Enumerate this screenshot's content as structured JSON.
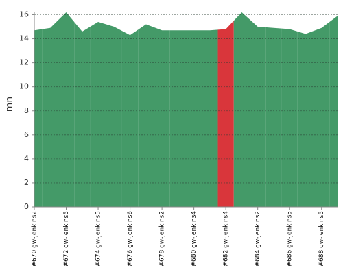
{
  "chart_data": {
    "type": "area",
    "y_label": "mn",
    "categories": [
      "#670 gw-jenkins2",
      null,
      "#672 gw-jenkins5",
      null,
      "#674 gw-jenkins5",
      null,
      "#676 gw-jenkins6",
      null,
      "#678 gw-jenkins2",
      null,
      "#680 gw-jenkins4",
      null,
      "#682 gw-jenkins4",
      null,
      "#684 gw-jenkins2",
      null,
      "#686 gw-jenkins5",
      null,
      "#688 gw-jenkins5",
      null
    ],
    "values": [
      14.7,
      14.9,
      16.2,
      14.6,
      15.4,
      15.0,
      14.3,
      15.2,
      14.7,
      14.7,
      14.7,
      14.7,
      14.8,
      16.2,
      15.0,
      14.9,
      14.8,
      14.4,
      14.9,
      15.9
    ],
    "colors": [
      "#449a68",
      "#449a68",
      "#449a68",
      "#449a68",
      "#449a68",
      "#449a68",
      "#449a68",
      "#449a68",
      "#449a68",
      "#449a68",
      "#449a68",
      "#449a68",
      "#d9363b",
      "#449a68",
      "#449a68",
      "#449a68",
      "#449a68",
      "#449a68",
      "#449a68",
      "#449a68"
    ],
    "ylim": [
      0,
      16.2
    ],
    "yticks": [
      0,
      2,
      4,
      6,
      8,
      10,
      12,
      14,
      16
    ],
    "grid": true
  }
}
